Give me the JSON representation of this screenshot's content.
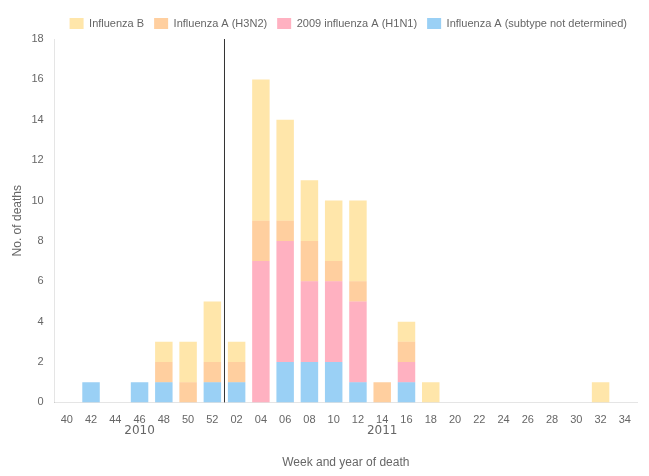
{
  "chart_data": {
    "type": "bar",
    "stacked": true,
    "categories": [
      "40",
      "42",
      "44",
      "46",
      "48",
      "50",
      "52",
      "02",
      "04",
      "06",
      "08",
      "10",
      "12",
      "14",
      "16",
      "18",
      "20",
      "22",
      "24",
      "26",
      "28",
      "30",
      "32",
      "34"
    ],
    "series": [
      {
        "name": "Influenza A (subtype not determined)",
        "values": [
          0,
          1,
          0,
          1,
          1,
          0,
          1,
          1,
          0,
          2,
          2,
          2,
          1,
          0,
          1,
          0,
          0,
          0,
          0,
          0,
          0,
          0,
          0,
          0
        ]
      },
      {
        "name": "2009 influenza A (H1N1)",
        "values": [
          0,
          0,
          0,
          0,
          0,
          0,
          0,
          0,
          7,
          6,
          4,
          4,
          4,
          0,
          1,
          0,
          0,
          0,
          0,
          0,
          0,
          0,
          0,
          0
        ]
      },
      {
        "name": "Influenza A (H3N2)",
        "values": [
          0,
          0,
          0,
          0,
          1,
          1,
          1,
          1,
          2,
          1,
          2,
          1,
          1,
          1,
          1,
          0,
          0,
          0,
          0,
          0,
          0,
          0,
          0,
          0
        ]
      },
      {
        "name": "Influenza B",
        "values": [
          0,
          0,
          0,
          0,
          1,
          2,
          3,
          1,
          7,
          5,
          3,
          3,
          4,
          0,
          1,
          1,
          0,
          0,
          0,
          0,
          0,
          0,
          1,
          0
        ]
      }
    ],
    "xlabel": "Week and year of death",
    "ylabel": "No. of deaths",
    "ylim": [
      0,
      18
    ],
    "yticks": [
      0,
      2,
      4,
      6,
      8,
      10,
      12,
      14,
      16,
      18
    ],
    "grid": false,
    "legend": "upper right",
    "annotations": [
      {
        "text": "2010",
        "x": "46"
      },
      {
        "text": "2011",
        "x": "14"
      },
      {
        "type": "line",
        "after": "52"
      }
    ]
  }
}
